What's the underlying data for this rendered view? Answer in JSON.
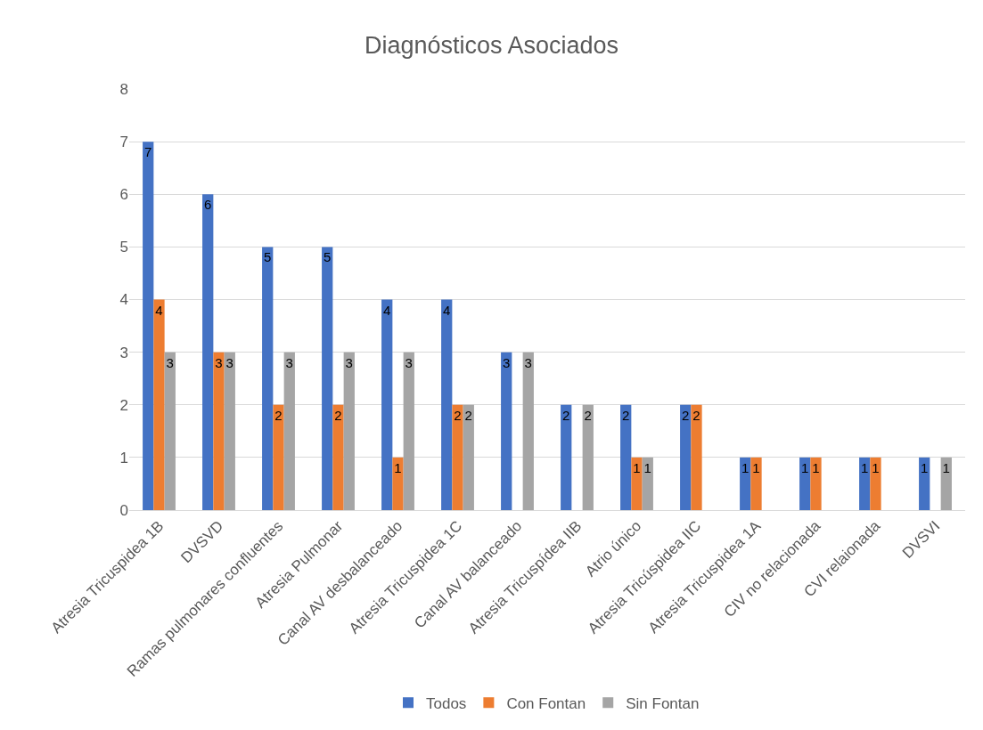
{
  "chart_data": {
    "type": "bar",
    "title": "Diagnósticos Asociados",
    "categories": [
      "Atresia Tricuspidea 1B",
      "DVSVD",
      "Ramas pulmonares confluentes",
      "Atresia Pulmonar",
      "Canal AV desbalanceado",
      "Atresia Tricuspidea 1C",
      "Canal AV balanceado",
      "Atresia Tricuspídea IIB",
      "Atrio único",
      "Atresia Tricúspidea IIC",
      "Atresia Tricuspidea 1A",
      "CIV no relacionada",
      "CVI relaionada",
      "DVSVI"
    ],
    "series": [
      {
        "name": "Todos",
        "color": "#4472c4",
        "values": [
          7,
          6,
          5,
          5,
          4,
          4,
          3,
          2,
          2,
          2,
          1,
          1,
          1,
          1
        ]
      },
      {
        "name": "Con Fontan",
        "color": "#ed7d31",
        "values": [
          4,
          3,
          2,
          2,
          1,
          2,
          null,
          null,
          1,
          2,
          1,
          1,
          1,
          null
        ]
      },
      {
        "name": "Sin Fontan",
        "color": "#a5a5a5",
        "values": [
          3,
          3,
          3,
          3,
          3,
          2,
          3,
          2,
          1,
          null,
          null,
          null,
          null,
          1
        ]
      }
    ],
    "ylim": [
      0,
      8
    ],
    "yticks": [
      0,
      1,
      2,
      3,
      4,
      5,
      6,
      7,
      8
    ],
    "grid": "y",
    "legend": "bottom",
    "data_labels": true
  }
}
